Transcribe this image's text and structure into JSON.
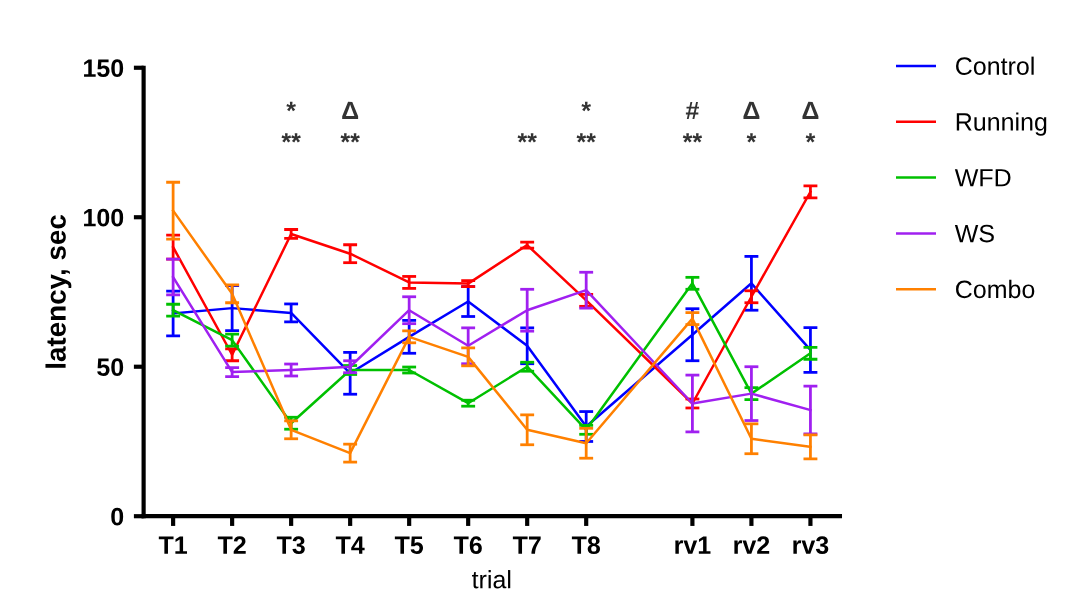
{
  "chart_data": {
    "type": "line",
    "xlabel": "trial",
    "ylabel": "latency, sec",
    "categories": [
      "T1",
      "T2",
      "T3",
      "T4",
      "T5",
      "T6",
      "T7",
      "T8",
      "rv1",
      "rv2",
      "rv3"
    ],
    "ylim": [
      0,
      150
    ],
    "yticks": [
      0,
      50,
      100,
      150
    ],
    "grid": false,
    "legend": "right",
    "marker": "none",
    "line_style": "solid",
    "series": [
      {
        "name": "Control",
        "color": "#0000ff",
        "values": [
          67.8,
          69.6,
          68,
          47.8,
          60,
          71.8,
          57,
          30,
          60.7,
          77.9,
          55.6
        ],
        "errors": [
          7.5,
          7.5,
          3,
          7,
          5.5,
          5,
          6,
          5,
          8.7,
          9,
          7.5
        ]
      },
      {
        "name": "Running",
        "color": "#ff0000",
        "values": [
          90,
          54,
          94.4,
          87.8,
          78.2,
          77.8,
          90.7,
          72.2,
          37.7,
          73.4,
          108.5
        ],
        "errors": [
          4,
          2,
          1.5,
          3,
          2,
          1,
          1,
          2,
          1.5,
          2,
          2
        ]
      },
      {
        "name": "WFD",
        "color": "#00c000",
        "values": [
          68.9,
          58.9,
          31.1,
          48.9,
          48.9,
          37.8,
          50,
          28.9,
          77.9,
          41,
          54.5
        ],
        "errors": [
          2,
          2,
          2,
          1.5,
          1,
          1,
          1.5,
          1.5,
          2,
          2,
          2
        ]
      },
      {
        "name": "WS",
        "color": "#a020f0",
        "values": [
          80,
          48.2,
          48.9,
          50,
          68.9,
          57,
          68.9,
          75.6,
          37.7,
          41,
          35.5
        ],
        "errors": [
          6,
          1.5,
          2,
          2,
          4.5,
          6,
          7,
          6,
          9.5,
          9,
          8
        ]
      },
      {
        "name": "Combo",
        "color": "#ff8000",
        "values": [
          102.2,
          74.4,
          28.9,
          21.1,
          60,
          53.3,
          28.9,
          24.4,
          66.1,
          25.9,
          23.2
        ],
        "errors": [
          9.5,
          3,
          3,
          3,
          2,
          3,
          5,
          5,
          2,
          5,
          4
        ]
      }
    ],
    "annotations": [
      "*",
      "Δ",
      "*",
      "#",
      "Δ",
      "Δ",
      "**",
      "**",
      "**",
      "**",
      "**",
      "*",
      "*"
    ]
  }
}
